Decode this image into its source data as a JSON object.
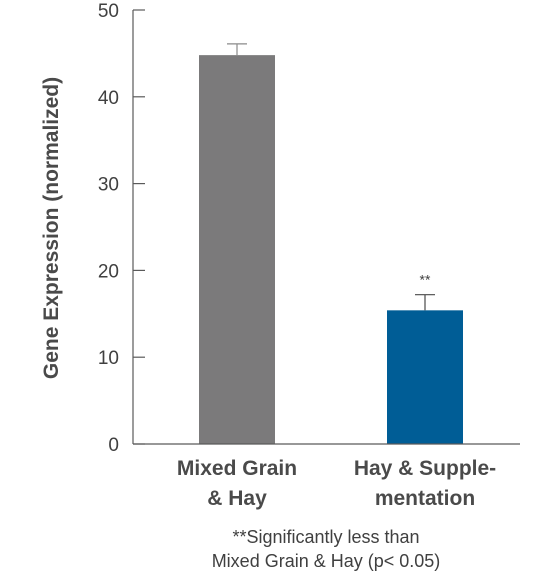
{
  "chart_data": {
    "type": "bar",
    "categories": [
      [
        "Mixed Grain",
        "& Hay"
      ],
      [
        "Hay & Supple-",
        "mentation"
      ]
    ],
    "values": [
      44.8,
      15.4
    ],
    "errors": [
      1.3,
      1.8
    ],
    "bar_colors": [
      "#7b7a7b",
      "#005d96"
    ],
    "significance": [
      "",
      "**"
    ],
    "ylabel": "Gene Expression (normalized)",
    "xlabel": "",
    "ylim": [
      0,
      50
    ],
    "yticks": [
      0,
      10,
      20,
      30,
      40,
      50
    ],
    "grid": false,
    "footnote": [
      "**Significantly less than",
      "Mixed Grain & Hay (p< 0.05)"
    ]
  }
}
